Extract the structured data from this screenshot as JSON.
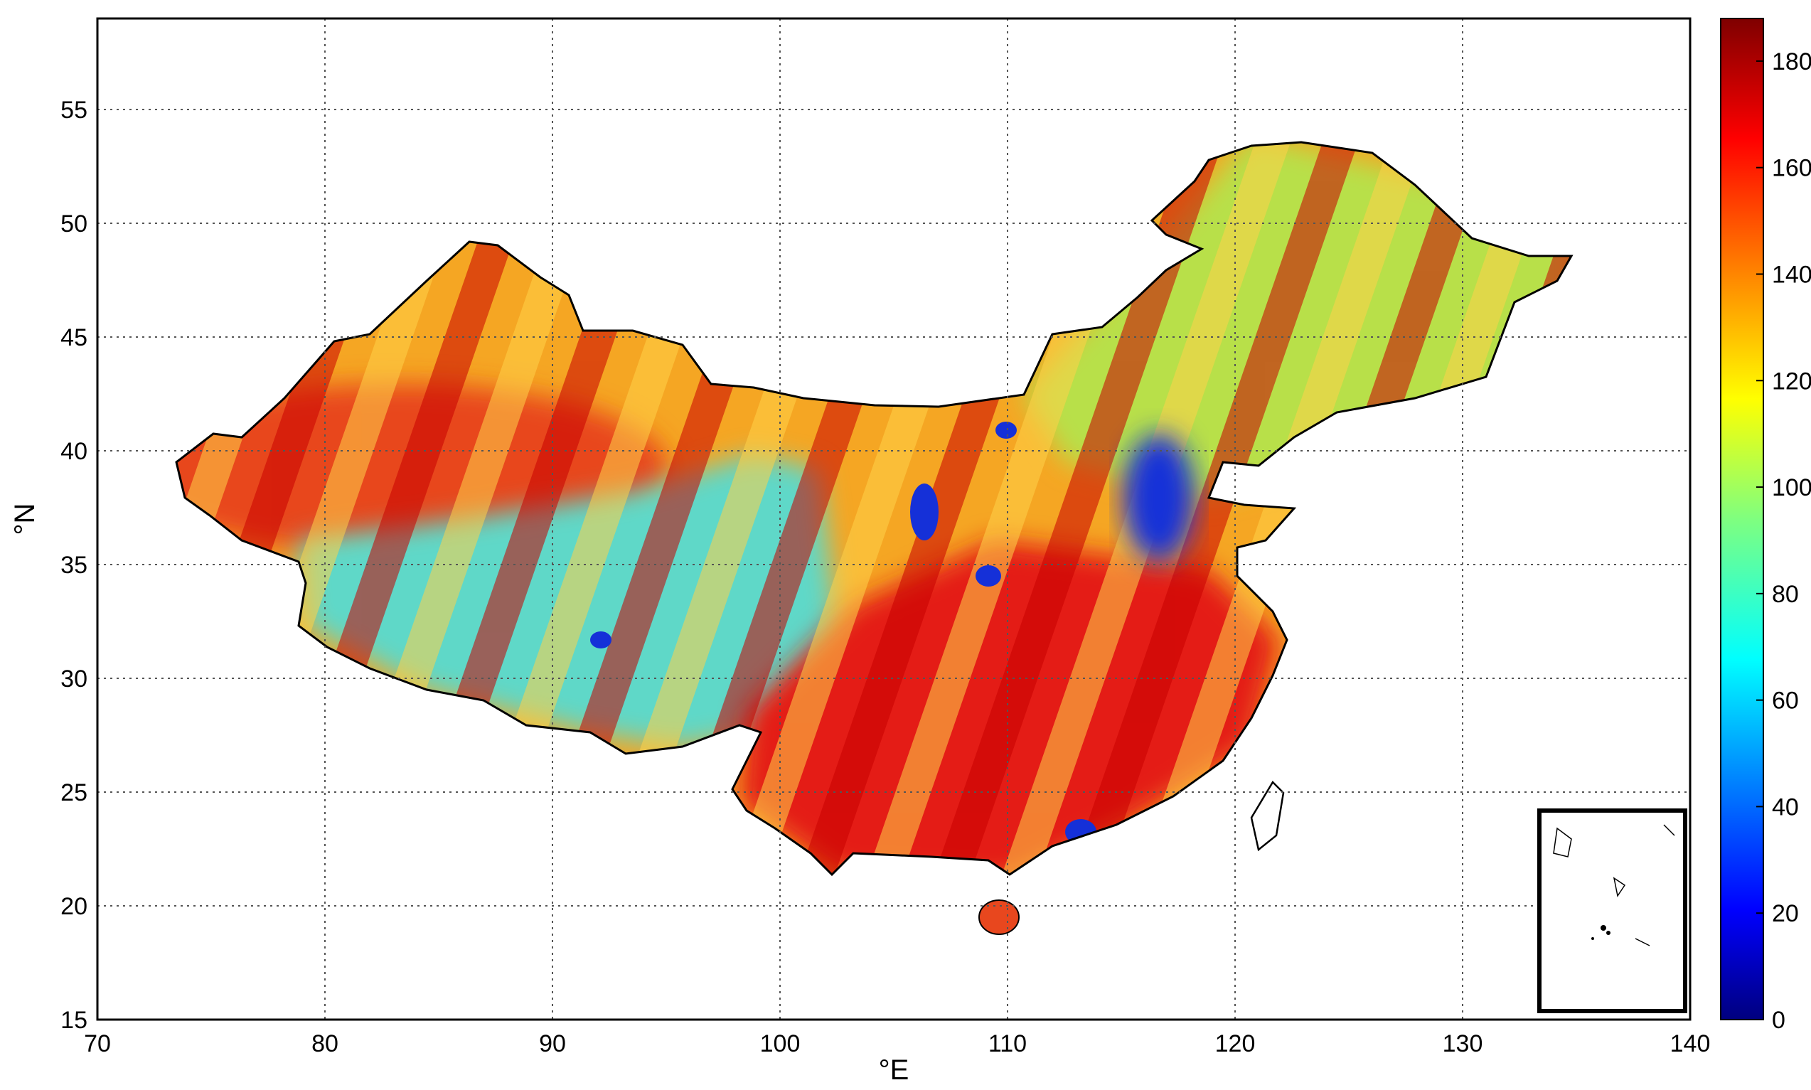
{
  "map": {
    "xlabel": "°E",
    "ylabel": "°N",
    "xlim": [
      70,
      140
    ],
    "ylim": [
      15,
      59
    ],
    "x_ticks": [
      "70",
      "80",
      "90",
      "100",
      "110",
      "120",
      "130",
      "140"
    ],
    "y_ticks": [
      "15",
      "20",
      "25",
      "30",
      "35",
      "40",
      "45",
      "50",
      "55"
    ],
    "grid": "dotted",
    "inset": "South China Sea islands (outline only)"
  },
  "colorbar": {
    "range": [
      0,
      188
    ],
    "ticks": [
      "0",
      "20",
      "40",
      "60",
      "80",
      "100",
      "120",
      "140",
      "160",
      "180"
    ],
    "colormap": "jet",
    "colors": [
      "#00007f",
      "#0000ff",
      "#007fff",
      "#00ffff",
      "#7fff7f",
      "#ffff00",
      "#ff7f00",
      "#ff0000",
      "#7f0000"
    ]
  },
  "regions": {
    "tibetan_plateau_approx_value": 70,
    "tarim_basin_approx_value": 160,
    "southern_china_approx_value": 170,
    "northeast_china_approx_value": 120,
    "north_china_plain_approx_value": 30
  }
}
